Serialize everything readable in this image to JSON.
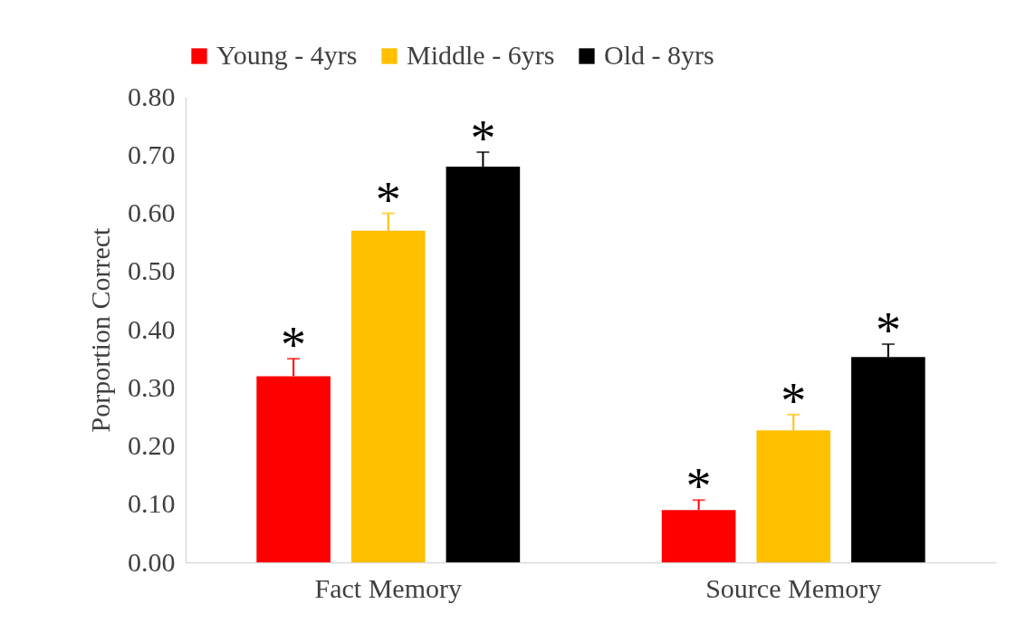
{
  "chart_data": {
    "type": "bar",
    "ylabel": "Porportion Correct",
    "categories": [
      "Fact Memory",
      "Source Memory"
    ],
    "series": [
      {
        "name": "Young - 4yrs",
        "color": "#ff0000",
        "values": [
          0.32,
          0.09
        ],
        "errors": [
          [
            0.32,
            0.35
          ],
          [
            0.09,
            0.107
          ]
        ],
        "value_labels": [
          "*",
          "*"
        ]
      },
      {
        "name": "Middle - 6yrs",
        "color": "#ffc000",
        "values": [
          0.57,
          0.227
        ],
        "errors": [
          [
            0.57,
            0.6
          ],
          [
            0.227,
            0.254
          ]
        ],
        "value_labels": [
          "*",
          "*"
        ]
      },
      {
        "name": "Old - 8yrs",
        "color": "#000000",
        "values": [
          0.68,
          0.353
        ],
        "errors": [
          [
            0.68,
            0.705
          ],
          [
            0.353,
            0.375
          ]
        ],
        "value_labels": [
          "*",
          "*"
        ]
      }
    ],
    "ylim": [
      0,
      0.8
    ],
    "yticks": [
      {
        "value": 0,
        "label": "0.00"
      },
      {
        "value": 0.1,
        "label": "0.10"
      },
      {
        "value": 0.2,
        "label": "0.20"
      },
      {
        "value": 0.3,
        "label": "0.30"
      },
      {
        "value": 0.4,
        "label": "0.40"
      },
      {
        "value": 0.5,
        "label": "0.50"
      },
      {
        "value": 0.6,
        "label": "0.60"
      },
      {
        "value": 0.7,
        "label": "0.70"
      },
      {
        "value": 0.8,
        "label": "0.80"
      }
    ],
    "grid": false,
    "legend": "top"
  }
}
